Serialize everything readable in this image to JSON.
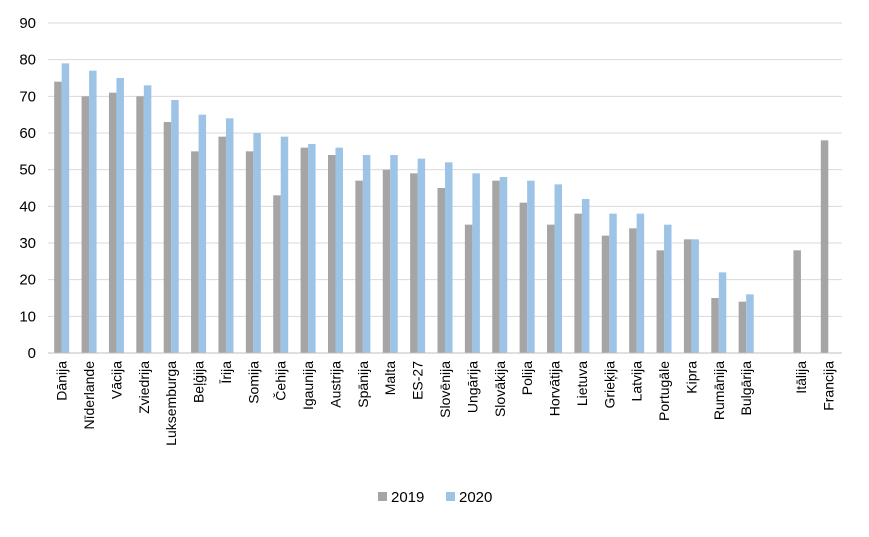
{
  "chart_data": {
    "type": "bar",
    "title": "",
    "xlabel": "",
    "ylabel": "",
    "ylim": [
      0,
      90
    ],
    "yticks": [
      0,
      10,
      20,
      30,
      40,
      50,
      60,
      70,
      80,
      90
    ],
    "grid": true,
    "legend_position": "bottom",
    "categories": [
      "Dānija",
      "Nīderlande",
      "Vācija",
      "Zviedrija",
      "Luksemburga",
      "Beļģija",
      "Īrija",
      "Somija",
      "Čehija",
      "Igaunija",
      "Austrija",
      "Spānija",
      "Malta",
      "ES-27",
      "Slovēnija",
      "Ungārija",
      "Slovākija",
      "Polija",
      "Horvātija",
      "Lietuva",
      "Grieķija",
      "Latvija",
      "Portugāle",
      "Kipra",
      "Rumānija",
      "Bulgārija",
      "",
      "Itālija",
      "Francija"
    ],
    "series": [
      {
        "name": "2019",
        "color": "#a5a5a5",
        "values": [
          74,
          70,
          71,
          70,
          63,
          55,
          59,
          55,
          43,
          56,
          54,
          47,
          50,
          49,
          45,
          35,
          47,
          41,
          35,
          38,
          32,
          34,
          28,
          31,
          15,
          14,
          null,
          28,
          58
        ]
      },
      {
        "name": "2020",
        "color": "#9dc3e6",
        "values": [
          79,
          77,
          75,
          73,
          69,
          65,
          64,
          60,
          59,
          57,
          56,
          54,
          54,
          53,
          52,
          49,
          48,
          47,
          46,
          42,
          38,
          38,
          35,
          31,
          22,
          16,
          null,
          null,
          null
        ]
      }
    ]
  }
}
